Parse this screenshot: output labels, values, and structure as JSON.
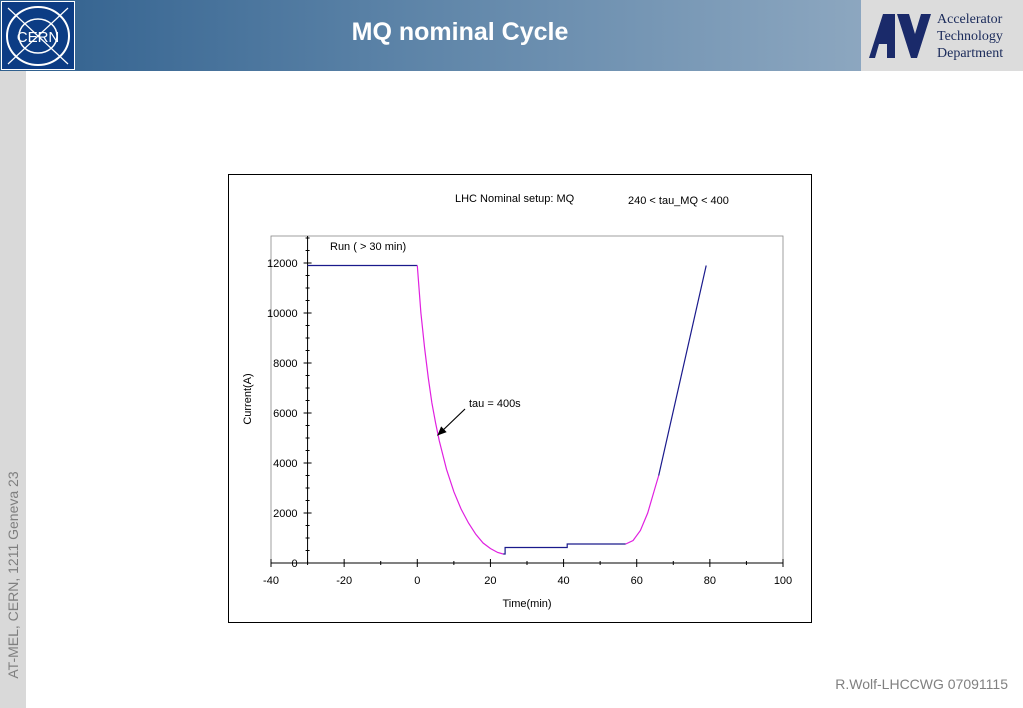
{
  "header": {
    "title": "MQ nominal Cycle",
    "logo_text": "CERN",
    "department": [
      "Accelerator",
      "Technology",
      "Department"
    ]
  },
  "sidebar": {
    "text": "AT-MEL, CERN, 1211 Geneva 23"
  },
  "footer": {
    "text": "R.Wolf-LHCCWG 07091115"
  },
  "colors": {
    "header_start": "#2f5f8d",
    "header_end": "#9db3c8",
    "decay_curve": "#e020e0",
    "flat_lines": "#1a1a8c"
  },
  "chart_data": {
    "type": "line",
    "title": "LHC Nominal setup: MQ",
    "subtitle": "240 < tau_MQ < 400",
    "xlabel": "Time(min)",
    "ylabel": "Current(A)",
    "xlim": [
      -40,
      100
    ],
    "ylim": [
      0,
      13000
    ],
    "xticks": [
      -40,
      -20,
      0,
      20,
      40,
      60,
      80,
      100
    ],
    "yticks": [
      0,
      2000,
      4000,
      6000,
      8000,
      10000,
      12000
    ],
    "grid": false,
    "annotations": {
      "run": "Run ( > 30 min)",
      "tau": "tau = 400s",
      "tau_point": [
        5.5,
        5100
      ]
    },
    "series": [
      {
        "color": "#1a1a8c",
        "x": [
          -30,
          0
        ],
        "y": [
          11900,
          11900
        ]
      },
      {
        "color": "#e020e0",
        "x": [
          0,
          1,
          2,
          3,
          4,
          5,
          6,
          8,
          10,
          12,
          14,
          16,
          18,
          20,
          22,
          23.5
        ],
        "y": [
          11900,
          10000,
          8600,
          7400,
          6400,
          5600,
          4900,
          3750,
          2850,
          2150,
          1600,
          1150,
          800,
          580,
          420,
          360
        ]
      },
      {
        "color": "#1a1a8c",
        "x": [
          23.5,
          24,
          24,
          41,
          41,
          57
        ],
        "y": [
          360,
          360,
          620,
          620,
          760,
          760
        ]
      },
      {
        "color": "#e020e0",
        "x": [
          57,
          59,
          61,
          63,
          65,
          66
        ],
        "y": [
          760,
          900,
          1300,
          2000,
          3000,
          3500
        ]
      },
      {
        "color": "#1a1a8c",
        "x": [
          66,
          79
        ],
        "y": [
          3500,
          11900
        ]
      }
    ]
  }
}
